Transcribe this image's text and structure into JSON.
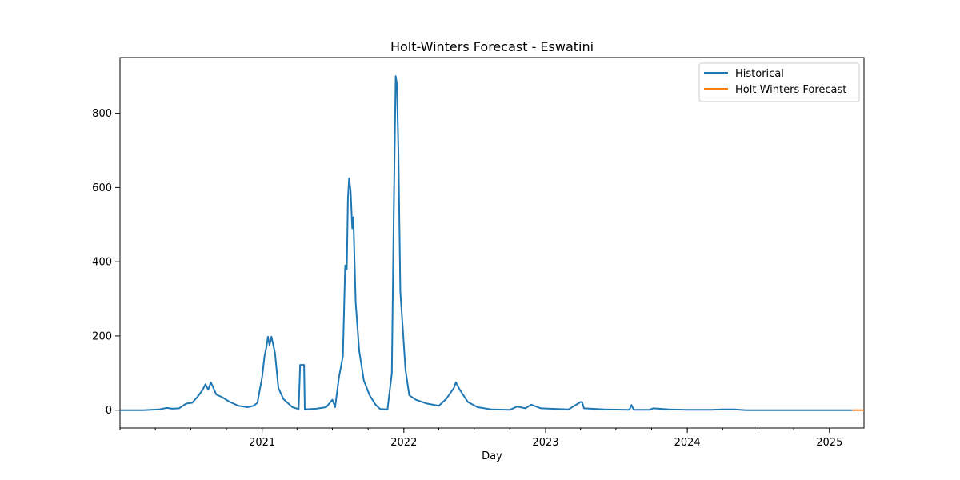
{
  "chart_data": {
    "type": "line",
    "title": "Holt-Winters Forecast - Eswatini",
    "xlabel": "Day",
    "ylabel": "",
    "x_range": [
      "2020-01-01",
      "2025-03-31"
    ],
    "ylim": [
      -48,
      950
    ],
    "x_ticks": [
      {
        "date": "2021-01-01",
        "label": "2021"
      },
      {
        "date": "2022-01-01",
        "label": "2022"
      },
      {
        "date": "2023-01-01",
        "label": "2023"
      },
      {
        "date": "2024-01-01",
        "label": "2024"
      },
      {
        "date": "2025-01-01",
        "label": "2025"
      }
    ],
    "y_ticks": [
      0,
      200,
      400,
      600,
      800
    ],
    "grid": false,
    "legend_position": "top-right",
    "series": [
      {
        "name": "Historical",
        "color": "#1f77b4",
        "points": [
          [
            "2020-01-01",
            0
          ],
          [
            "2020-03-01",
            0
          ],
          [
            "2020-04-10",
            2
          ],
          [
            "2020-05-01",
            6
          ],
          [
            "2020-05-15",
            4
          ],
          [
            "2020-06-01",
            5
          ],
          [
            "2020-06-20",
            18
          ],
          [
            "2020-07-05",
            20
          ],
          [
            "2020-07-20",
            38
          ],
          [
            "2020-08-01",
            55
          ],
          [
            "2020-08-08",
            70
          ],
          [
            "2020-08-15",
            55
          ],
          [
            "2020-08-22",
            75
          ],
          [
            "2020-09-05",
            42
          ],
          [
            "2020-09-20",
            35
          ],
          [
            "2020-10-10",
            22
          ],
          [
            "2020-11-01",
            12
          ],
          [
            "2020-11-25",
            8
          ],
          [
            "2020-12-10",
            12
          ],
          [
            "2020-12-20",
            20
          ],
          [
            "2021-01-01",
            90
          ],
          [
            "2021-01-07",
            145
          ],
          [
            "2021-01-12",
            170
          ],
          [
            "2021-01-16",
            198
          ],
          [
            "2021-01-20",
            175
          ],
          [
            "2021-01-25",
            198
          ],
          [
            "2021-02-03",
            155
          ],
          [
            "2021-02-12",
            60
          ],
          [
            "2021-02-25",
            30
          ],
          [
            "2021-03-20",
            8
          ],
          [
            "2021-04-05",
            3
          ],
          [
            "2021-04-09",
            122
          ],
          [
            "2021-04-19",
            122
          ],
          [
            "2021-04-21",
            2
          ],
          [
            "2021-05-20",
            4
          ],
          [
            "2021-06-15",
            8
          ],
          [
            "2021-07-01",
            28
          ],
          [
            "2021-07-08",
            8
          ],
          [
            "2021-07-18",
            90
          ],
          [
            "2021-07-28",
            145
          ],
          [
            "2021-08-03",
            390
          ],
          [
            "2021-08-07",
            380
          ],
          [
            "2021-08-10",
            570
          ],
          [
            "2021-08-13",
            625
          ],
          [
            "2021-08-17",
            590
          ],
          [
            "2021-08-21",
            490
          ],
          [
            "2021-08-24",
            520
          ],
          [
            "2021-08-30",
            290
          ],
          [
            "2021-09-08",
            160
          ],
          [
            "2021-09-20",
            80
          ],
          [
            "2021-10-05",
            40
          ],
          [
            "2021-10-20",
            15
          ],
          [
            "2021-11-01",
            3
          ],
          [
            "2021-11-20",
            2
          ],
          [
            "2021-12-01",
            100
          ],
          [
            "2021-12-06",
            530
          ],
          [
            "2021-12-11",
            900
          ],
          [
            "2021-12-14",
            880
          ],
          [
            "2021-12-18",
            700
          ],
          [
            "2021-12-23",
            320
          ],
          [
            "2021-12-30",
            210
          ],
          [
            "2022-01-05",
            110
          ],
          [
            "2022-01-15",
            40
          ],
          [
            "2022-02-01",
            28
          ],
          [
            "2022-03-01",
            18
          ],
          [
            "2022-04-01",
            12
          ],
          [
            "2022-04-20",
            30
          ],
          [
            "2022-05-10",
            60
          ],
          [
            "2022-05-15",
            75
          ],
          [
            "2022-05-25",
            55
          ],
          [
            "2022-06-15",
            22
          ],
          [
            "2022-07-10",
            8
          ],
          [
            "2022-08-15",
            2
          ],
          [
            "2022-10-01",
            1
          ],
          [
            "2022-10-20",
            10
          ],
          [
            "2022-11-10",
            5
          ],
          [
            "2022-11-25",
            15
          ],
          [
            "2022-12-20",
            5
          ],
          [
            "2023-02-01",
            3
          ],
          [
            "2023-03-01",
            2
          ],
          [
            "2023-04-01",
            22
          ],
          [
            "2023-04-05",
            22
          ],
          [
            "2023-04-10",
            5
          ],
          [
            "2023-06-01",
            2
          ],
          [
            "2023-08-05",
            1
          ],
          [
            "2023-08-10",
            14
          ],
          [
            "2023-08-16",
            1
          ],
          [
            "2023-09-25",
            1
          ],
          [
            "2023-10-05",
            5
          ],
          [
            "2023-11-15",
            2
          ],
          [
            "2024-01-01",
            1
          ],
          [
            "2024-03-01",
            1
          ],
          [
            "2024-04-01",
            2
          ],
          [
            "2024-05-01",
            2
          ],
          [
            "2024-06-01",
            0
          ],
          [
            "2025-03-01",
            0
          ]
        ]
      },
      {
        "name": "Holt-Winters Forecast",
        "color": "#ff7f0e",
        "points": [
          [
            "2025-03-01",
            0
          ],
          [
            "2025-03-31",
            0
          ]
        ]
      }
    ]
  }
}
